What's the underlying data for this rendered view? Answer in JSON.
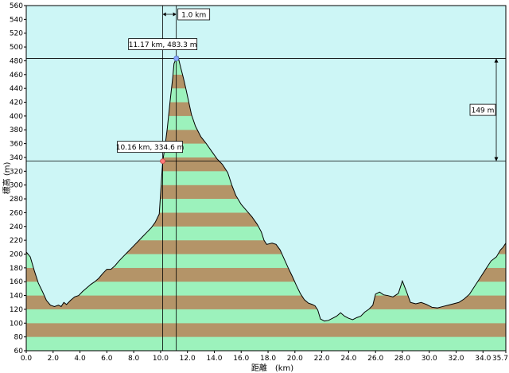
{
  "chart_data": {
    "type": "area",
    "title": "",
    "xlabel": "距離　(km)",
    "ylabel": "標高 (m)",
    "xlim": [
      0,
      35.7
    ],
    "ylim": [
      60,
      560
    ],
    "x_ticks": [
      0,
      2,
      4,
      6,
      8,
      10,
      12,
      14,
      16,
      18,
      20,
      22,
      24,
      26,
      28,
      30,
      32,
      34,
      35.7
    ],
    "x_tick_labels": [
      "0.0",
      "2.0",
      "4.0",
      "6.0",
      "8.0",
      "10.0",
      "12.0",
      "14.0",
      "16.0",
      "18.0",
      "20.0",
      "22.0",
      "24.0",
      "26.0",
      "28.0",
      "30.0",
      "32.0",
      "34.0",
      "35.7"
    ],
    "y_ticks": [
      60,
      80,
      100,
      120,
      140,
      160,
      180,
      200,
      220,
      240,
      260,
      280,
      300,
      320,
      340,
      360,
      380,
      400,
      420,
      440,
      460,
      480,
      500,
      520,
      540,
      560
    ],
    "y_tick_labels": [
      "60",
      "80",
      "100",
      "120",
      "140",
      "160",
      "180",
      "200",
      "220",
      "240",
      "260",
      "280",
      "300",
      "320",
      "340",
      "360",
      "380",
      "400",
      "420",
      "440",
      "460",
      "480",
      "500",
      "520",
      "540",
      "560"
    ],
    "band_height_m": 20,
    "colors": {
      "background": "#cdf6f6",
      "band_a": "#b49468",
      "band_b": "#9cf2bc",
      "profile_line": "#000000",
      "marker_high": "#8aa8ff",
      "marker_low": "#ff7a7a"
    },
    "series": [
      {
        "points": [
          [
            0.0,
            203
          ],
          [
            0.3,
            196
          ],
          [
            0.6,
            176
          ],
          [
            0.9,
            158
          ],
          [
            1.2,
            146
          ],
          [
            1.5,
            133
          ],
          [
            1.8,
            126
          ],
          [
            2.1,
            124
          ],
          [
            2.4,
            126
          ],
          [
            2.6,
            124
          ],
          [
            2.8,
            130
          ],
          [
            3.0,
            127
          ],
          [
            3.3,
            133
          ],
          [
            3.6,
            138
          ],
          [
            3.9,
            140
          ],
          [
            4.2,
            146
          ],
          [
            4.5,
            151
          ],
          [
            4.8,
            156
          ],
          [
            5.1,
            160
          ],
          [
            5.4,
            165
          ],
          [
            5.7,
            172
          ],
          [
            6.0,
            178
          ],
          [
            6.3,
            178
          ],
          [
            6.6,
            183
          ],
          [
            6.9,
            190
          ],
          [
            7.2,
            196
          ],
          [
            7.5,
            202
          ],
          [
            7.8,
            208
          ],
          [
            8.1,
            214
          ],
          [
            8.4,
            220
          ],
          [
            8.7,
            226
          ],
          [
            9.0,
            232
          ],
          [
            9.3,
            238
          ],
          [
            9.6,
            246
          ],
          [
            9.9,
            258
          ],
          [
            10.16,
            334.6
          ],
          [
            10.3,
            352
          ],
          [
            10.5,
            382
          ],
          [
            10.7,
            420
          ],
          [
            10.9,
            455
          ],
          [
            11.0,
            476
          ],
          [
            11.17,
            483.3
          ],
          [
            11.3,
            486
          ],
          [
            11.5,
            470
          ],
          [
            11.7,
            455
          ],
          [
            11.9,
            438
          ],
          [
            12.1,
            420
          ],
          [
            12.3,
            402
          ],
          [
            12.6,
            385
          ],
          [
            13.0,
            370
          ],
          [
            13.4,
            360
          ],
          [
            13.8,
            349
          ],
          [
            14.2,
            338
          ],
          [
            14.6,
            330
          ],
          [
            15.0,
            318
          ],
          [
            15.3,
            300
          ],
          [
            15.6,
            285
          ],
          [
            16.0,
            272
          ],
          [
            16.4,
            263
          ],
          [
            16.8,
            254
          ],
          [
            17.2,
            243
          ],
          [
            17.5,
            232
          ],
          [
            17.7,
            220
          ],
          [
            17.9,
            214
          ],
          [
            18.3,
            216
          ],
          [
            18.6,
            214
          ],
          [
            18.9,
            206
          ],
          [
            19.2,
            193
          ],
          [
            19.5,
            180
          ],
          [
            19.8,
            168
          ],
          [
            20.1,
            155
          ],
          [
            20.4,
            143
          ],
          [
            20.7,
            134
          ],
          [
            21.0,
            129
          ],
          [
            21.3,
            127
          ],
          [
            21.5,
            125
          ],
          [
            21.7,
            119
          ],
          [
            21.9,
            106
          ],
          [
            22.2,
            103
          ],
          [
            22.5,
            104
          ],
          [
            22.8,
            107
          ],
          [
            23.1,
            110
          ],
          [
            23.4,
            115
          ],
          [
            23.7,
            110
          ],
          [
            24.0,
            107
          ],
          [
            24.3,
            105
          ],
          [
            24.6,
            108
          ],
          [
            24.9,
            110
          ],
          [
            25.2,
            116
          ],
          [
            25.5,
            120
          ],
          [
            25.8,
            126
          ],
          [
            26.0,
            142
          ],
          [
            26.3,
            145
          ],
          [
            26.6,
            141
          ],
          [
            26.9,
            140
          ],
          [
            27.3,
            138
          ],
          [
            27.7,
            143
          ],
          [
            28.0,
            161
          ],
          [
            28.3,
            146
          ],
          [
            28.6,
            130
          ],
          [
            29.0,
            128
          ],
          [
            29.4,
            130
          ],
          [
            29.8,
            127
          ],
          [
            30.2,
            123
          ],
          [
            30.6,
            122
          ],
          [
            31.0,
            124
          ],
          [
            31.4,
            126
          ],
          [
            31.8,
            128
          ],
          [
            32.2,
            130
          ],
          [
            32.6,
            135
          ],
          [
            33.0,
            142
          ],
          [
            33.4,
            154
          ],
          [
            33.8,
            166
          ],
          [
            34.2,
            178
          ],
          [
            34.6,
            190
          ],
          [
            35.0,
            196
          ],
          [
            35.3,
            206
          ],
          [
            35.5,
            210
          ],
          [
            35.7,
            216
          ]
        ]
      }
    ],
    "annotations": {
      "high_point": {
        "x": 11.17,
        "y": 483.3,
        "label": "11.17 km, 483.3 m"
      },
      "low_point": {
        "x": 10.16,
        "y": 334.6,
        "label": "10.16 km, 334.6 m"
      },
      "horizontal_distance_label": "1.0 km",
      "elevation_difference_label": "149 m"
    }
  }
}
